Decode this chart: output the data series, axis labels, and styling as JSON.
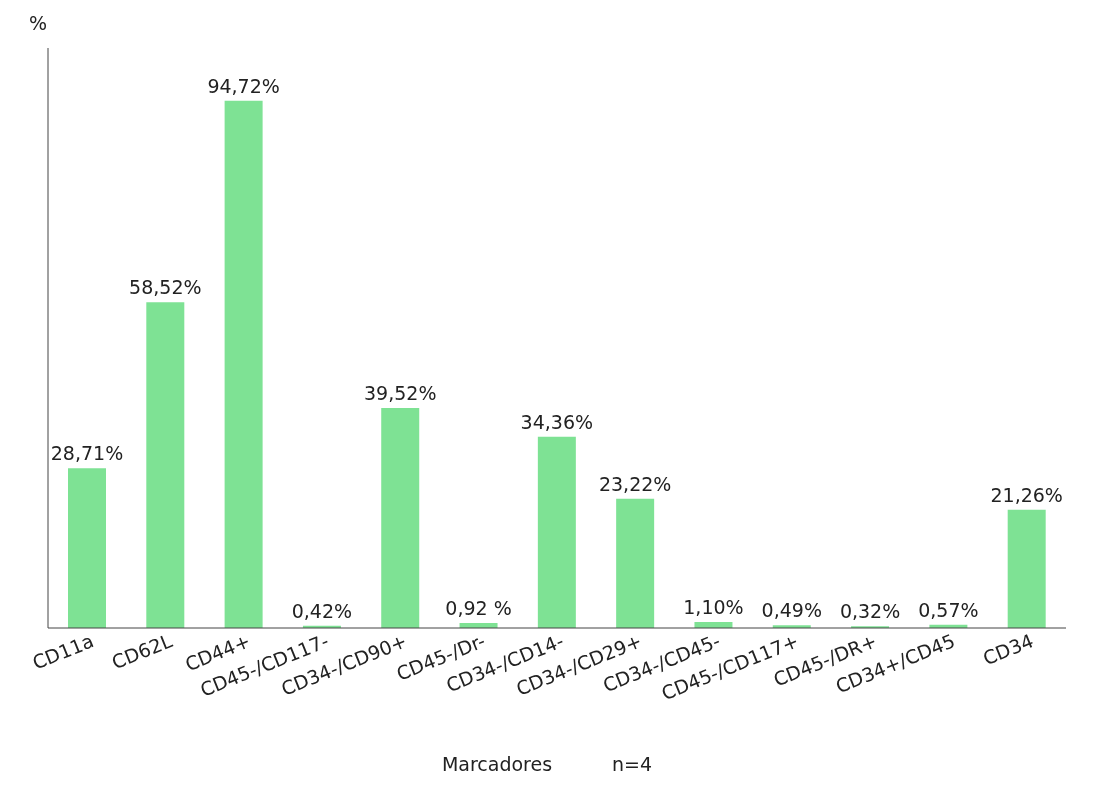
{
  "chart_data": {
    "type": "bar",
    "ylabel": "%",
    "xlabel": "Marcadores",
    "annotations": [
      "n=4"
    ],
    "categories": [
      "CD11a",
      "CD62L",
      "CD44+",
      "CD45-/CD117-",
      "CD34-/CD90+",
      "CD45-/Dr-",
      "CD34-/CD14-",
      "CD34-/CD29+",
      "CD34-/CD45-",
      "CD45-/CD117+",
      "CD45-/DR+",
      "CD34+/CD45",
      "CD34"
    ],
    "values": [
      28.71,
      58.52,
      94.72,
      0.42,
      39.52,
      0.92,
      34.36,
      23.22,
      1.1,
      0.49,
      0.32,
      0.57,
      21.26
    ],
    "value_labels": [
      "28,71%",
      "58,52%",
      "94,72%",
      "0,42%",
      "39,52%",
      "0,92 %",
      "34,36%",
      "23,22%",
      "1,10%",
      "0,49%",
      "0,32%",
      "0,57%",
      "21,26%"
    ],
    "color": "#7ee294"
  }
}
